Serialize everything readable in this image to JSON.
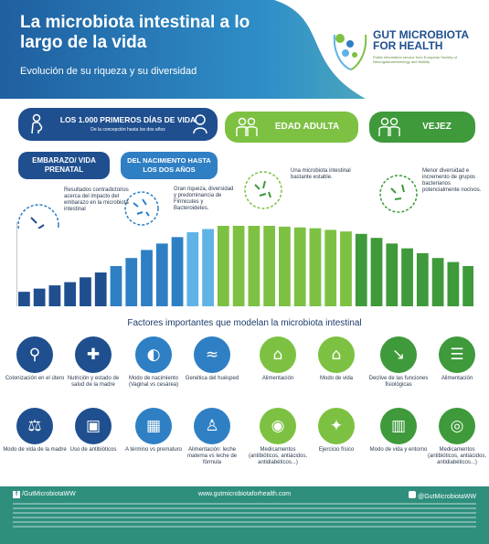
{
  "header": {
    "title": "La microbiota intestinal a lo largo de la vida",
    "subtitle": "Evolución de su riqueza y su diversidad",
    "logo_name": "GUT MICROBIOTA FOR HEALTH",
    "logo_tagline": "Public information service from European Society of Neurogastroenterology and Motility"
  },
  "stages": {
    "first_1000": "LOS 1.000 PRIMEROS DÍAS DE VIDA",
    "first_1000_sub": "De la concepción hasta los dos años",
    "pregnancy": "EMBARAZO/ VIDA PRENATAL",
    "birth": "DEL NACIMIENTO HASTA LOS DOS AÑOS",
    "adult": "EDAD ADULTA",
    "old_age": "VEJEZ"
  },
  "stage_notes": {
    "pregnancy": "Resultados contradictorios acerca del impacto del embarazo en la microbiota intestinal",
    "birth": "Gran riqueza, diversidad y predominancia de Firmicutes y Bacteroidetes.",
    "adult": "Una microbiota intestinal bastante estable.",
    "old_age": "Menor diversidad e incremento de grupos bacterianos potencialmente nocivos."
  },
  "bar_levels": [
    0.18,
    0.22,
    0.26,
    0.3,
    0.36,
    0.42,
    0.5,
    0.6,
    0.7,
    0.78,
    0.86,
    0.92,
    0.96,
    1.0,
    1.0,
    1.0,
    1.0,
    0.99,
    0.98,
    0.97,
    0.95,
    0.93,
    0.9,
    0.85,
    0.78,
    0.72,
    0.66,
    0.6,
    0.55,
    0.5
  ],
  "colors": {
    "blue_dark": "#1f4f8f",
    "blue": "#2f7fc4",
    "blue_light": "#5fb3e6",
    "green": "#7dc142",
    "green_dark": "#3e9a3a",
    "teal": "#2e8f7d"
  },
  "factors_title": "Factores importantes que modelan la microbiota intestinal",
  "factors": [
    {
      "label": "Colonización en el útero",
      "icon": "uterus-icon",
      "color": "#1f4f8f"
    },
    {
      "label": "Nutrición y estado de salud de la madre",
      "icon": "mother-health-icon",
      "color": "#1f4f8f"
    },
    {
      "label": "Modo de nacimiento (Vaginal vs cesárea)",
      "icon": "birth-icon",
      "color": "#2f7fc4"
    },
    {
      "label": "Genética del huésped",
      "icon": "dna-icon",
      "color": "#2f7fc4"
    },
    {
      "label": "Alimentación",
      "icon": "food-icon",
      "color": "#7dc142"
    },
    {
      "label": "Modo de vida",
      "icon": "lifestyle-icon",
      "color": "#7dc142"
    },
    {
      "label": "Declive de las funciones fisiológicas",
      "icon": "decline-chart-icon",
      "color": "#3e9a3a"
    },
    {
      "label": "Alimentación",
      "icon": "clipboard-food-icon",
      "color": "#3e9a3a"
    },
    {
      "label": "Modo de vida de la madre",
      "icon": "scale-icon",
      "color": "#1f4f8f"
    },
    {
      "label": "Uso de antibióticos",
      "icon": "pill-bottle-icon",
      "color": "#1f4f8f"
    },
    {
      "label": "A término vs prematuro",
      "icon": "calendar-icon",
      "color": "#2f7fc4"
    },
    {
      "label": "Alimentación: leche materna vs leche de fórmula",
      "icon": "baby-bottle-icon",
      "color": "#2f7fc4"
    },
    {
      "label": "Medicamentos (antibióticos, antiácidos, antidiabéticos...)",
      "icon": "medicine-icon",
      "color": "#7dc142"
    },
    {
      "label": "Ejercicio físico",
      "icon": "exercise-icon",
      "color": "#7dc142"
    },
    {
      "label": "Modo de vida y entorno",
      "icon": "city-icon",
      "color": "#3e9a3a"
    },
    {
      "label": "Medicamentos (antibióticos, antiácidos, antidiabéticos...)",
      "icon": "pills-icon",
      "color": "#3e9a3a"
    }
  ],
  "footer": {
    "facebook": "/GutMicrobiotaWW",
    "website": "www.gutmicrobiotaforhealth.com",
    "twitter": "@GutMicrobiotaWW"
  }
}
